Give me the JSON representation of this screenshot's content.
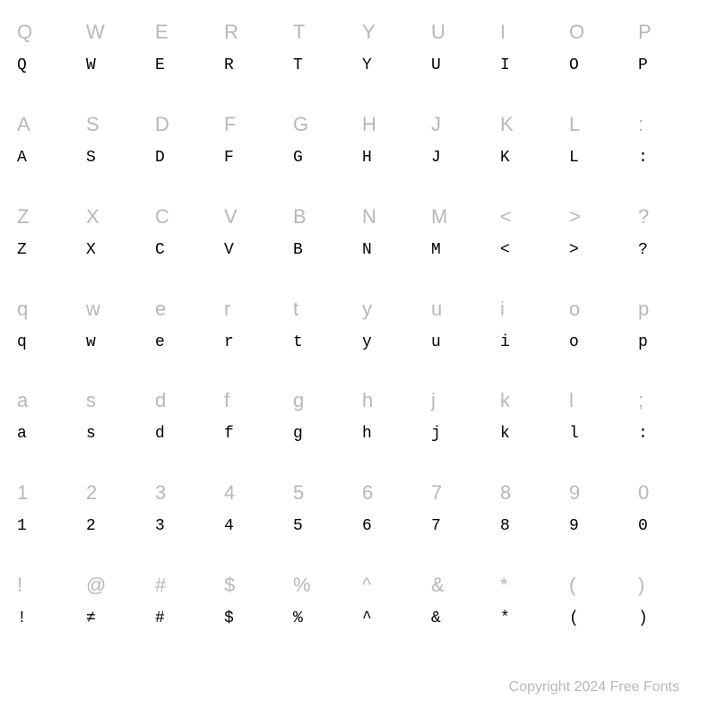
{
  "grid": {
    "rows": [
      {
        "ref": [
          "Q",
          "W",
          "E",
          "R",
          "T",
          "Y",
          "U",
          "I",
          "O",
          "P"
        ],
        "glyph": [
          "Q",
          "W",
          "E",
          "R",
          "T",
          "Y",
          "U",
          "I",
          "O",
          "P"
        ]
      },
      {
        "ref": [
          "A",
          "S",
          "D",
          "F",
          "G",
          "H",
          "J",
          "K",
          "L",
          ":"
        ],
        "glyph": [
          "A",
          "S",
          "D",
          "F",
          "G",
          "H",
          "J",
          "K",
          "L",
          ":"
        ]
      },
      {
        "ref": [
          "Z",
          "X",
          "C",
          "V",
          "B",
          "N",
          "M",
          "<",
          ">",
          "?"
        ],
        "glyph": [
          "Z",
          "X",
          "C",
          "V",
          "B",
          "N",
          "M",
          "<",
          ">",
          "?"
        ]
      },
      {
        "ref": [
          "q",
          "w",
          "e",
          "r",
          "t",
          "y",
          "u",
          "i",
          "o",
          "p"
        ],
        "glyph": [
          "q",
          "w",
          "e",
          "r",
          "t",
          "y",
          "u",
          "i",
          "o",
          "p"
        ]
      },
      {
        "ref": [
          "a",
          "s",
          "d",
          "f",
          "g",
          "h",
          "j",
          "k",
          "l",
          ";"
        ],
        "glyph": [
          "a",
          "s",
          "d",
          "f",
          "g",
          "h",
          "j",
          "k",
          "l",
          ":"
        ]
      },
      {
        "ref": [
          "1",
          "2",
          "3",
          "4",
          "5",
          "6",
          "7",
          "8",
          "9",
          "0"
        ],
        "glyph": [
          "1",
          "2",
          "3",
          "4",
          "5",
          "6",
          "7",
          "8",
          "9",
          "0"
        ]
      },
      {
        "ref": [
          "!",
          "@",
          "#",
          "$",
          "%",
          "^",
          "&",
          "*",
          "(",
          ")"
        ],
        "glyph": [
          "!",
          "≠",
          "#",
          "$",
          "%",
          "^",
          "&",
          "*",
          "(",
          ")"
        ]
      }
    ],
    "columns": 10,
    "ref_color": "#b8b8b8",
    "glyph_color": "#000000",
    "ref_fontsize": 22,
    "glyph_fontsize": 18,
    "background_color": "#ffffff"
  },
  "copyright": "Copyright 2024 Free Fonts"
}
